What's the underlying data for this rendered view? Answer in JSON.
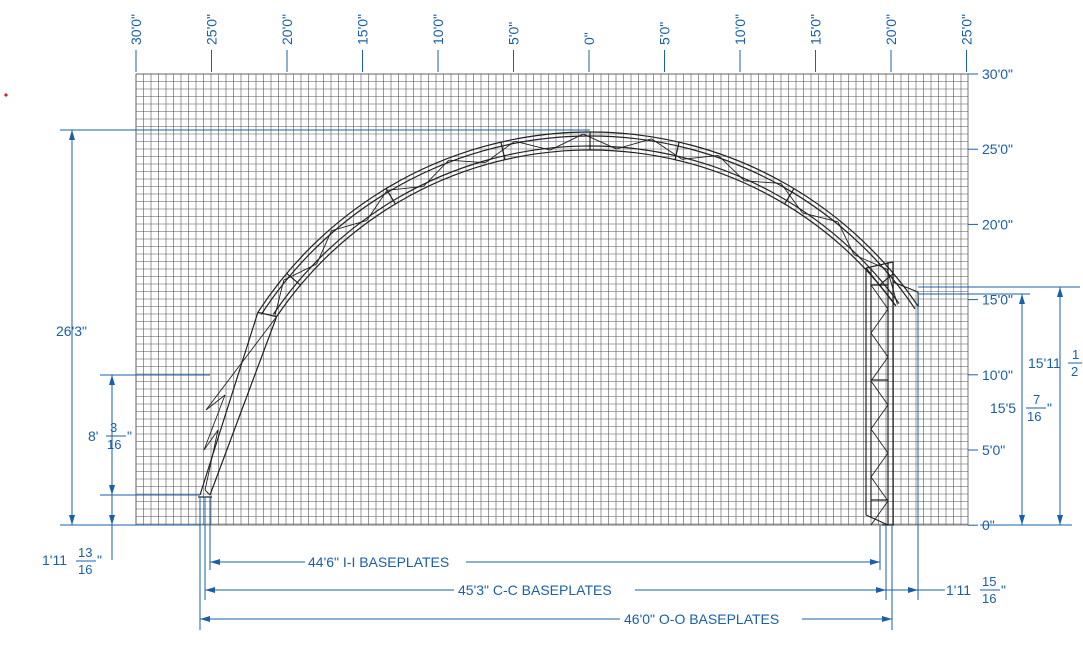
{
  "top_scale_labels": [
    "30'0\"",
    "25'0\"",
    "20'0\"",
    "15'0\"",
    "10'0\"",
    "5'0\"",
    "0\"",
    "5'0\"",
    "10'0\"",
    "15'0\"",
    "20'0\"",
    "25'0\""
  ],
  "right_scale_labels": [
    "30'0\"",
    "25'0\"",
    "20'0\"",
    "15'0\"",
    "10'0\"",
    "5'0\"",
    "0\""
  ],
  "dimensions": {
    "overall_height": "26'3\"",
    "left_rise": {
      "whole": "8'",
      "num": "3",
      "den": "16",
      "unit": "\""
    },
    "left_base_offset": {
      "whole": "1'11",
      "num": "13",
      "den": "16",
      "unit": "\""
    },
    "right_peak_height": {
      "whole": "15'11",
      "num": "1",
      "den": "2",
      "unit": ""
    },
    "right_leg_height": {
      "whole": "15'5",
      "num": "7",
      "den": "16",
      "unit": "\""
    },
    "right_base_offset": {
      "whole": "1'11",
      "num": "15",
      "den": "16",
      "unit": "\""
    },
    "ih_baseplates": "44'6\" I-I BASEPLATES",
    "cc_baseplates": "45'3\" C-C BASEPLATES",
    "oo_baseplates": "46'0\" O-O BASEPLATES"
  },
  "colors": {
    "dimension": "#1a5fa8",
    "grid": "#555555",
    "truss": "#222222",
    "marker": "#cc2222"
  }
}
